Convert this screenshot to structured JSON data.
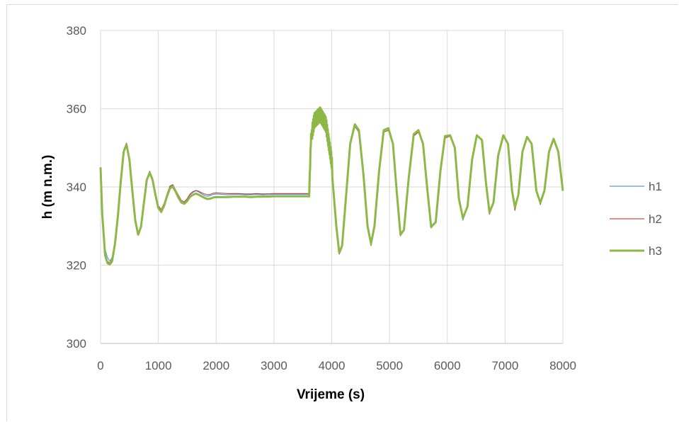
{
  "chart_data": {
    "type": "line",
    "title": "",
    "xlabel": "Vrijeme (s)",
    "ylabel": "h (m n.m.)",
    "xlim": [
      0,
      8000
    ],
    "ylim": [
      300,
      380
    ],
    "xticks": [
      "0",
      "1000",
      "2000",
      "3000",
      "4000",
      "5000",
      "6000",
      "7000",
      "8000"
    ],
    "yticks": [
      "300",
      "320",
      "340",
      "360",
      "380"
    ],
    "grid": true,
    "legend_position": "right",
    "series": [
      {
        "name": "h1",
        "color": "#5b9bd5",
        "width": 1.2,
        "x": [
          0,
          30,
          80,
          120,
          160,
          200,
          250,
          300,
          350,
          400,
          450,
          500,
          550,
          600,
          650,
          700,
          750,
          800,
          850,
          900,
          950,
          1000,
          1050,
          1100,
          1150,
          1200,
          1250,
          1300,
          1350,
          1400,
          1450,
          1500,
          1550,
          1600,
          1650,
          1700,
          1750,
          1800,
          1850,
          1900,
          1950,
          2000,
          2100,
          2200,
          2300,
          2400,
          2500,
          2600,
          2700,
          2800,
          3000,
          3200,
          3400,
          3610,
          3640,
          3700,
          3800,
          3900,
          4000,
          4080,
          4130,
          4180,
          4250,
          4320,
          4400,
          4470,
          4550,
          4620,
          4680,
          4740,
          4820,
          4900,
          4980,
          5060,
          5130,
          5190,
          5250,
          5330,
          5420,
          5500,
          5580,
          5650,
          5720,
          5800,
          5880,
          5960,
          6050,
          6130,
          6200,
          6270,
          6350,
          6430,
          6510,
          6600,
          6670,
          6730,
          6800,
          6880,
          6970,
          7050,
          7120,
          7170,
          7230,
          7300,
          7380,
          7460,
          7540,
          7610,
          7680,
          7760,
          7840,
          7920,
          8000
        ],
        "y": [
          345,
          335,
          324,
          322,
          321,
          322,
          326,
          333,
          342,
          349,
          351,
          347,
          339,
          332,
          328,
          330,
          336,
          342,
          344,
          342,
          338,
          335,
          334,
          335.5,
          338,
          340,
          340.5,
          339,
          337.5,
          336.2,
          336,
          336.8,
          338,
          338.6,
          339,
          338.7,
          338.2,
          337.8,
          337.6,
          337.8,
          338.1,
          338.2,
          338.1,
          338.0,
          338.1,
          338.1,
          338.0,
          338.0,
          338.1,
          338.0,
          338.1,
          338.1,
          338.1,
          338.1,
          352,
          356,
          357,
          355,
          346,
          330,
          323.5,
          325,
          338,
          351,
          355.5,
          354,
          343,
          330,
          325.5,
          330,
          344,
          354,
          354.5,
          351,
          338,
          328,
          329,
          342,
          353,
          354,
          351,
          340,
          330,
          331,
          344,
          352.5,
          353,
          350,
          337,
          331.5,
          335,
          347,
          353,
          352,
          341,
          333.5,
          336,
          348,
          353,
          351,
          339,
          335,
          338,
          349,
          352.5,
          351,
          339,
          336,
          339,
          349,
          352,
          349,
          339
        ]
      },
      {
        "name": "h2",
        "color": "#c0504d",
        "width": 1.2,
        "x": [
          0,
          30,
          80,
          120,
          160,
          200,
          250,
          300,
          350,
          400,
          450,
          500,
          550,
          600,
          650,
          700,
          750,
          800,
          850,
          900,
          950,
          1000,
          1050,
          1100,
          1150,
          1200,
          1250,
          1300,
          1350,
          1400,
          1450,
          1500,
          1550,
          1600,
          1650,
          1700,
          1750,
          1800,
          1850,
          1900,
          1950,
          2000,
          2100,
          2200,
          2300,
          2400,
          2500,
          2600,
          2700,
          2800,
          3000,
          3200,
          3400,
          3610,
          3640,
          3700,
          3800,
          3900,
          4000,
          4080,
          4130,
          4180,
          4250,
          4320,
          4400,
          4470,
          4550,
          4620,
          4680,
          4740,
          4820,
          4900,
          4980,
          5060,
          5130,
          5190,
          5250,
          5330,
          5420,
          5500,
          5580,
          5650,
          5720,
          5800,
          5880,
          5960,
          6050,
          6130,
          6200,
          6270,
          6350,
          6430,
          6510,
          6600,
          6670,
          6730,
          6800,
          6880,
          6970,
          7050,
          7120,
          7170,
          7230,
          7300,
          7380,
          7460,
          7540,
          7610,
          7680,
          7760,
          7840,
          7920,
          8000
        ],
        "y": [
          345,
          334,
          323,
          321,
          320.5,
          321.5,
          326,
          333,
          342,
          349.5,
          351.2,
          347.5,
          339.5,
          332,
          328,
          330,
          336,
          342,
          344,
          342.2,
          338.5,
          335.2,
          334.2,
          335.8,
          338.2,
          340.2,
          340.6,
          339.2,
          337.8,
          336.5,
          336.2,
          337,
          338.2,
          338.8,
          339.1,
          338.9,
          338.5,
          338.2,
          338,
          338.1,
          338.4,
          338.5,
          338.4,
          338.3,
          338.3,
          338.3,
          338.2,
          338.2,
          338.3,
          338.2,
          338.3,
          338.3,
          338.3,
          338.3,
          352,
          356,
          357,
          355,
          346,
          330,
          322.8,
          324.5,
          338,
          351,
          355.5,
          354,
          343,
          330,
          325,
          330,
          344,
          354,
          354.5,
          351,
          338,
          327.5,
          329,
          342,
          353,
          354,
          351,
          340,
          329.5,
          331,
          344,
          352.5,
          353,
          350,
          337,
          331.8,
          335,
          347,
          353,
          352,
          341,
          333,
          336,
          348,
          353,
          351,
          339,
          334,
          338,
          349,
          352.5,
          351,
          339,
          335.5,
          339,
          349,
          352,
          349,
          339
        ]
      },
      {
        "name": "h3",
        "color": "#8db848",
        "width": 3,
        "x": [
          0,
          30,
          80,
          120,
          160,
          200,
          250,
          300,
          350,
          400,
          450,
          500,
          550,
          600,
          650,
          700,
          750,
          800,
          850,
          900,
          950,
          1000,
          1050,
          1100,
          1150,
          1200,
          1250,
          1300,
          1350,
          1400,
          1450,
          1500,
          1550,
          1600,
          1650,
          1700,
          1750,
          1800,
          1850,
          1900,
          1950,
          2000,
          2100,
          2200,
          2300,
          2400,
          2500,
          2600,
          2700,
          2800,
          3000,
          3200,
          3400,
          3610,
          3640,
          3700,
          3800,
          3900,
          4000,
          4080,
          4130,
          4180,
          4250,
          4320,
          4400,
          4470,
          4550,
          4620,
          4680,
          4740,
          4820,
          4900,
          4980,
          5060,
          5130,
          5190,
          5250,
          5330,
          5420,
          5500,
          5580,
          5650,
          5720,
          5800,
          5880,
          5960,
          6050,
          6130,
          6200,
          6270,
          6350,
          6430,
          6510,
          6600,
          6670,
          6730,
          6800,
          6880,
          6970,
          7050,
          7120,
          7170,
          7230,
          7300,
          7380,
          7460,
          7540,
          7610,
          7680,
          7760,
          7840,
          7920,
          8000
        ],
        "y": [
          345,
          333,
          322.5,
          320.5,
          320.2,
          321,
          325.5,
          332.5,
          341.5,
          349,
          350.8,
          347,
          339,
          331.5,
          327.8,
          329.8,
          335.8,
          341.8,
          343.6,
          341.8,
          338,
          334.6,
          333.6,
          335.2,
          337.6,
          339.6,
          340.1,
          338.8,
          337.2,
          336,
          335.7,
          336.4,
          337.5,
          338,
          338.3,
          338,
          337.6,
          337.2,
          336.9,
          337,
          337.3,
          337.4,
          337.4,
          337.4,
          337.5,
          337.5,
          337.5,
          337.4,
          337.5,
          337.5,
          337.6,
          337.6,
          337.6,
          337.6,
          352.5,
          357,
          358.5,
          356,
          346.5,
          330,
          323.2,
          325,
          338,
          351,
          356,
          354.5,
          343,
          330,
          325.5,
          330,
          344,
          354.5,
          355,
          351,
          338,
          327.8,
          329,
          342,
          353.5,
          354.5,
          351,
          340,
          329.8,
          331,
          344,
          353,
          353.2,
          350,
          337,
          332,
          335,
          347,
          353.2,
          352,
          341,
          333.5,
          336,
          348,
          353.2,
          351,
          339,
          334.8,
          338,
          349,
          352.8,
          351,
          339,
          336,
          339,
          349,
          352.3,
          349,
          339
        ]
      }
    ]
  }
}
